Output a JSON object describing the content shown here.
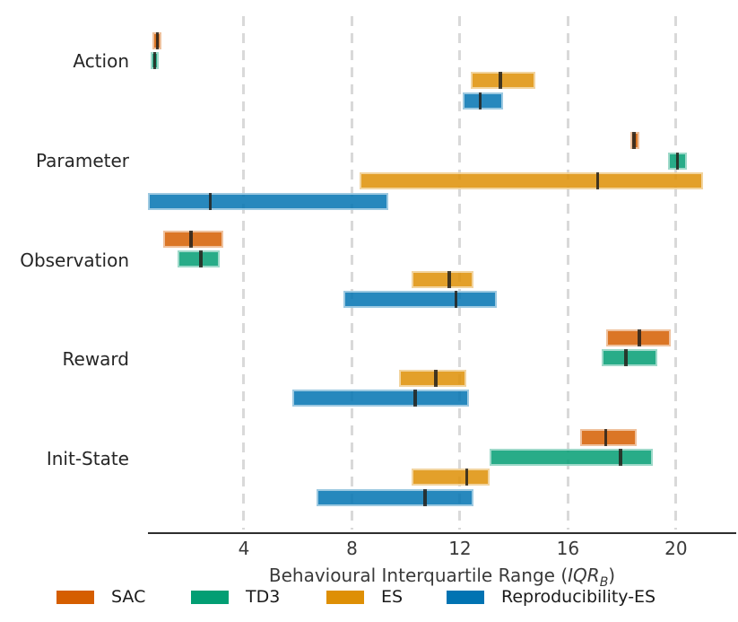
{
  "chart_data": {
    "type": "grouped_horizontal_range_bars",
    "title": "",
    "xlabel_prefix": "Behavioural Interquartile Range (",
    "xlabel_italic": "IQR",
    "xlabel_sub": "B",
    "xlabel_suffix": ")",
    "xlabel_plain": "Behavioural Interquartile Range (IQR_B)",
    "x_ticks": [
      4,
      8,
      12,
      16,
      20
    ],
    "xlim": [
      0.4,
      22.3
    ],
    "grid": "vertical-dashed",
    "legend_position": "bottom",
    "categories": [
      "Action",
      "Parameter",
      "Observation",
      "Reward",
      "Init-State"
    ],
    "values_are": "q1_median_q3",
    "series": [
      {
        "name": "SAC",
        "color": "#d55e00",
        "values": [
          [
            0.63,
            0.79,
            0.96
          ],
          [
            18.3,
            18.45,
            18.65
          ],
          [
            1.0,
            2.05,
            3.25
          ],
          [
            17.4,
            18.65,
            19.8
          ],
          [
            16.45,
            17.4,
            18.55
          ]
        ]
      },
      {
        "name": "TD3",
        "color": "#029e73",
        "values": [
          [
            0.54,
            0.7,
            0.85
          ],
          [
            19.7,
            20.05,
            20.4
          ],
          [
            1.55,
            2.4,
            3.1
          ],
          [
            17.25,
            18.15,
            19.3
          ],
          [
            13.1,
            17.95,
            19.15
          ]
        ]
      },
      {
        "name": "ES",
        "color": "#de8f05",
        "values": [
          [
            12.4,
            13.5,
            14.8
          ],
          [
            8.3,
            17.1,
            21.0
          ],
          [
            10.2,
            11.6,
            12.5
          ],
          [
            9.75,
            11.1,
            12.25
          ],
          [
            10.2,
            12.25,
            13.1
          ]
        ]
      },
      {
        "name": "Reproducibility-ES",
        "color": "#0173b2",
        "values": [
          [
            12.1,
            12.75,
            13.6
          ],
          [
            0.45,
            2.75,
            9.35
          ],
          [
            7.7,
            11.85,
            13.35
          ],
          [
            5.8,
            10.35,
            12.35
          ],
          [
            6.7,
            10.7,
            12.5
          ]
        ]
      }
    ],
    "colors": {
      "grid": "#d9d9d9",
      "axis": "#2e2e2e",
      "text": "#262626",
      "median_line": "#262220"
    }
  },
  "legend": {
    "items": [
      {
        "label": "SAC",
        "color": "#d55e00"
      },
      {
        "label": "TD3",
        "color": "#029e73"
      },
      {
        "label": "ES",
        "color": "#de8f05"
      },
      {
        "label": "Reproducibility-ES",
        "color": "#0173b2"
      }
    ]
  }
}
